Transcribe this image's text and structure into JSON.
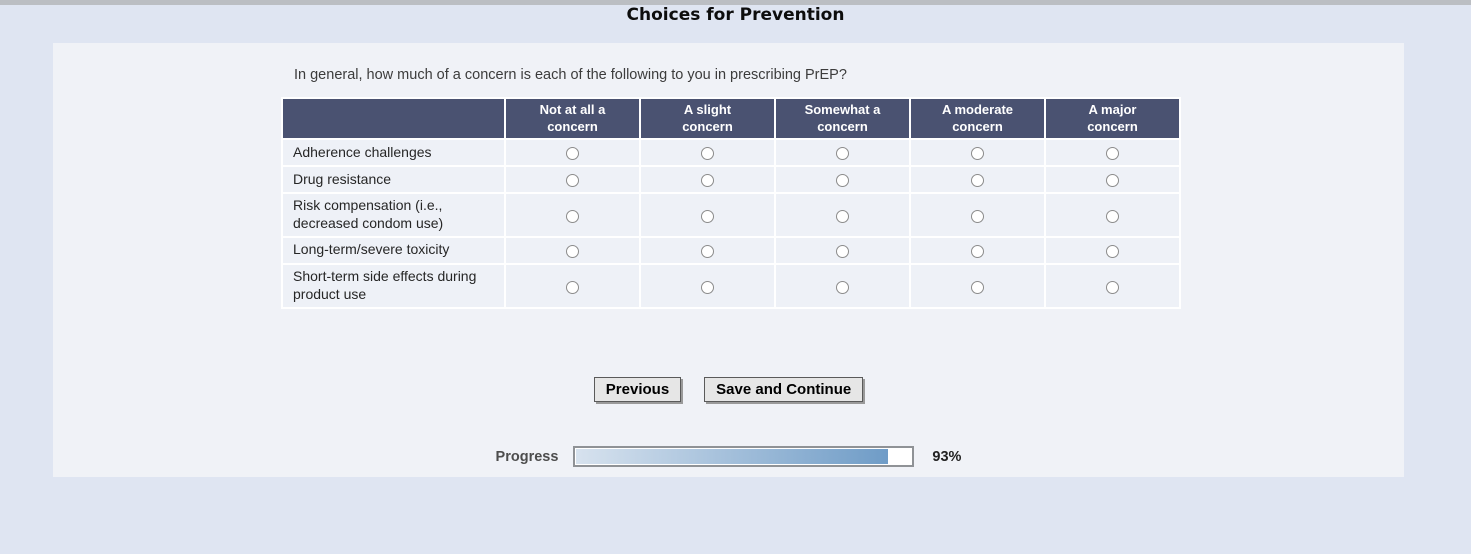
{
  "page": {
    "title": "Choices for Prevention"
  },
  "question": "In general, how much of a concern is each of the following to you in prescribing PrEP?",
  "matrix": {
    "columns": [
      "Not at all a\nconcern",
      "A slight\nconcern",
      "Somewhat a\nconcern",
      "A moderate\nconcern",
      "A major\nconcern"
    ],
    "rows": [
      {
        "label": "Adherence challenges"
      },
      {
        "label": "Drug resistance"
      },
      {
        "label": "Risk compensation (i.e., decreased condom use)"
      },
      {
        "label": "Long-term/severe toxicity"
      },
      {
        "label": "Short-term side effects during product use"
      }
    ],
    "selected": null
  },
  "buttons": {
    "previous": "Previous",
    "save_and_continue": "Save and Continue"
  },
  "progress": {
    "label": "Progress",
    "percent": 93,
    "percent_text": "93%"
  },
  "colors": {
    "page_background": "#dfe5f2",
    "panel_background": "#f0f2f7",
    "header_background": "#4a5271",
    "row_background": "#eef1f7",
    "progress_fill_start": "#d7e2ee",
    "progress_fill_end": "#6f9cc7"
  }
}
